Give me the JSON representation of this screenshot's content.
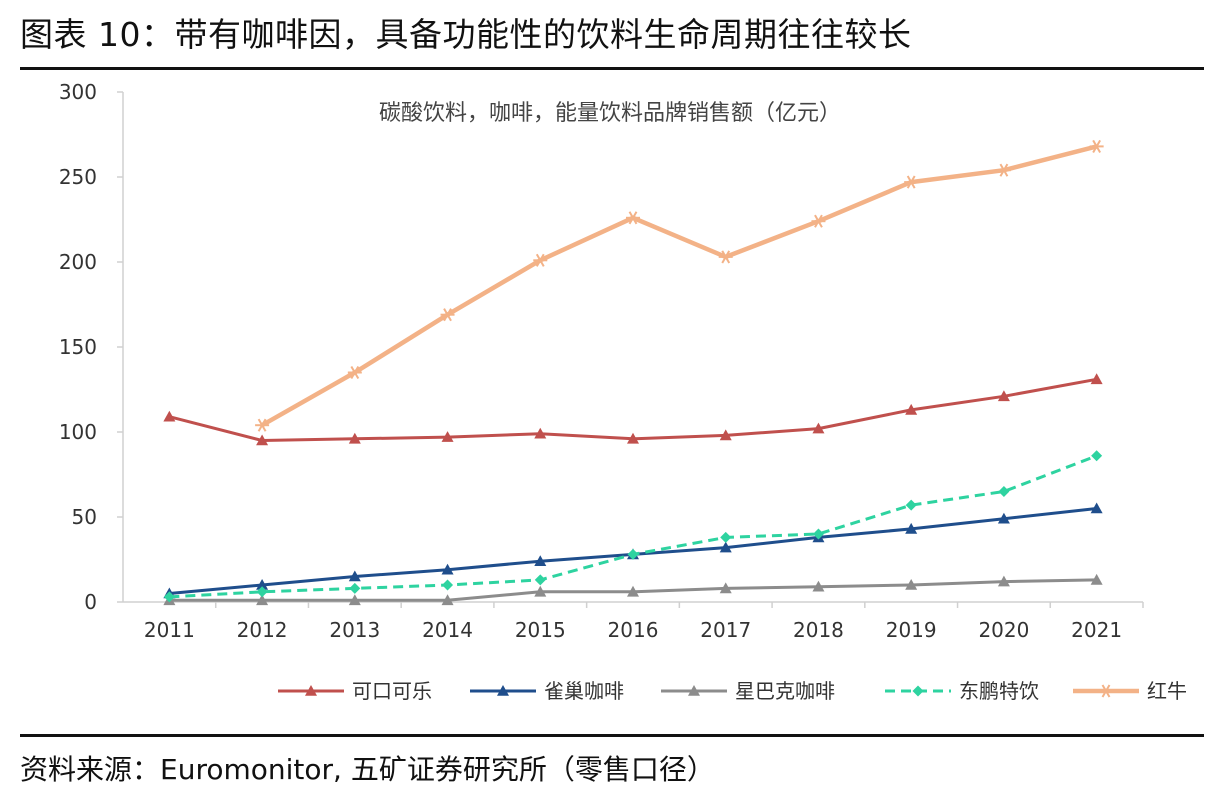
{
  "figure": {
    "title": "图表 10：带有咖啡因，具备功能性的饮料生命周期往往较长",
    "source": "资料来源：Euromonitor,  五矿证券研究所（零售口径）"
  },
  "chart_data": {
    "type": "line",
    "title": "碳酸饮料，咖啡，能量饮料品牌销售额（亿元）",
    "xlabel": "",
    "ylabel": "",
    "ylim": [
      0,
      300
    ],
    "yticks": [
      0,
      50,
      100,
      150,
      200,
      250,
      300
    ],
    "grid": false,
    "legend_position": "bottom",
    "categories": [
      "2011",
      "2012",
      "2013",
      "2014",
      "2015",
      "2016",
      "2017",
      "2018",
      "2019",
      "2020",
      "2021"
    ],
    "series": [
      {
        "name": "可口可乐",
        "color": "#c0504d",
        "dash": "solid",
        "marker": "triangle",
        "values": [
          109,
          95,
          96,
          97,
          99,
          96,
          98,
          102,
          113,
          121,
          131
        ]
      },
      {
        "name": "雀巢咖啡",
        "color": "#1f4e8c",
        "dash": "solid",
        "marker": "triangle",
        "values": [
          5,
          10,
          15,
          19,
          24,
          28,
          32,
          38,
          43,
          49,
          55
        ]
      },
      {
        "name": "星巴克咖啡",
        "color": "#8c8c8c",
        "dash": "solid",
        "marker": "triangle",
        "values": [
          1,
          1,
          1,
          1,
          6,
          6,
          8,
          9,
          10,
          12,
          13
        ]
      },
      {
        "name": "东鹏特饮",
        "color": "#2ed3a0",
        "dash": "dashed",
        "marker": "diamond",
        "values": [
          3,
          6,
          8,
          10,
          13,
          28,
          38,
          40,
          57,
          65,
          86
        ]
      },
      {
        "name": "红牛",
        "color": "#f3b287",
        "dash": "solid",
        "marker": "asterisk",
        "values": [
          null,
          104,
          135,
          169,
          201,
          226,
          203,
          224,
          247,
          254,
          268
        ]
      }
    ]
  }
}
